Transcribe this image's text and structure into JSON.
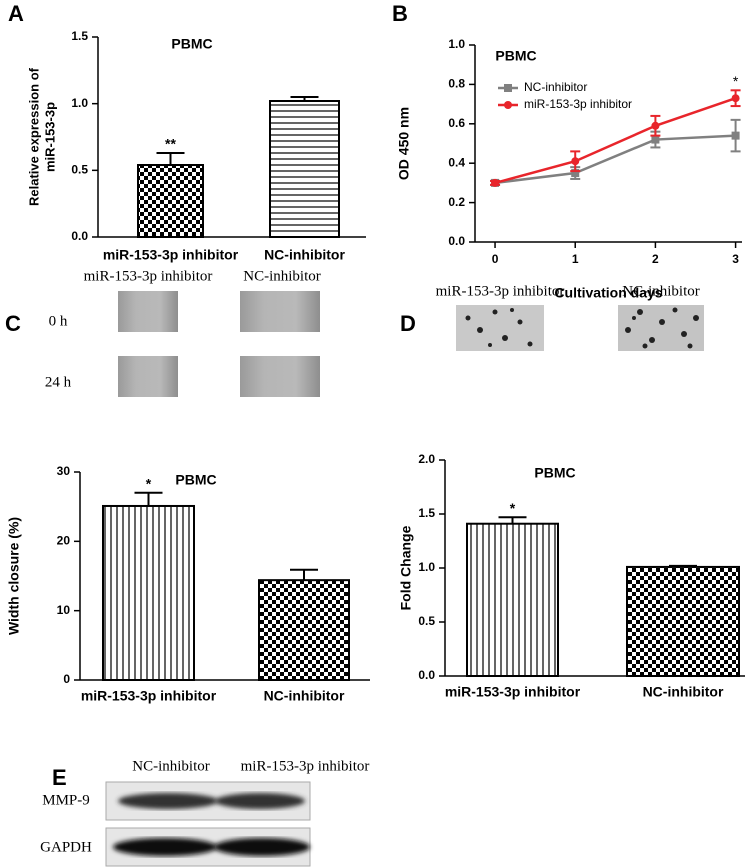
{
  "panel_labels": [
    "A",
    "B",
    "C",
    "D",
    "E"
  ],
  "chart_data": [
    {
      "type": "bar",
      "title": "PBMC",
      "ylabel": [
        "Relative expression of",
        "miR-153-3p"
      ],
      "categories": [
        "miR-153-3p inhibitor",
        "NC-inhibitor"
      ],
      "values": [
        0.54,
        1.02
      ],
      "errors": [
        0.09,
        0.03
      ],
      "patterns": [
        "checker",
        "hlines"
      ],
      "annotations": [
        {
          "text": "**",
          "category": "miR-153-3p inhibitor"
        }
      ],
      "ylim": [
        0,
        1.5
      ],
      "yticks": [
        {
          "value": 0,
          "label": "0.0"
        },
        0.5,
        {
          "value": 1,
          "label": "1.0"
        },
        1.5
      ]
    },
    {
      "type": "line",
      "title": "PBMC",
      "xlabel": "Cultivation days",
      "ylabel": "OD 450 nm",
      "x": [
        0,
        1,
        2,
        3
      ],
      "xlim": [
        -0.25,
        3.08
      ],
      "xticks": [
        0,
        1,
        2,
        3
      ],
      "ylim": [
        0,
        1
      ],
      "yticks": [
        {
          "value": 0,
          "label": "0.0"
        },
        {
          "value": 0.2,
          "label": "0.2"
        },
        {
          "value": 0.4,
          "label": "0.4"
        },
        {
          "value": 0.6,
          "label": "0.6"
        },
        {
          "value": 0.8,
          "label": "0.8"
        },
        {
          "value": 1,
          "label": "1.0"
        }
      ],
      "series": [
        {
          "name": "NC-inhibitor",
          "color": "#808080",
          "marker": "square",
          "values": [
            0.3,
            0.35,
            0.52,
            0.54
          ],
          "errors": [
            0.01,
            0.03,
            0.04,
            0.08
          ]
        },
        {
          "name": "miR-153-3p inhibitor",
          "color": "#e8252b",
          "marker": "circle",
          "values": [
            0.3,
            0.41,
            0.59,
            0.73
          ],
          "errors": [
            0.01,
            0.05,
            0.05,
            0.04
          ]
        }
      ],
      "annotations": [
        {
          "text": "*",
          "x": 3,
          "series": "miR-153-3p inhibitor"
        }
      ]
    },
    {
      "type": "bar",
      "title": "PBMC",
      "ylabel": "Width closure (%)",
      "categories": [
        "miR-153-3p inhibitor",
        "NC-inhibitor"
      ],
      "values": [
        25.1,
        14.4
      ],
      "errors": [
        1.9,
        1.5
      ],
      "patterns": [
        "vlines",
        "checker"
      ],
      "annotations": [
        {
          "text": "*",
          "category": "miR-153-3p inhibitor"
        }
      ],
      "ylim": [
        0,
        30
      ],
      "yticks": [
        0,
        10,
        20,
        30
      ]
    },
    {
      "type": "bar",
      "title": "PBMC",
      "ylabel": "Fold Change",
      "categories": [
        "miR-153-3p inhibitor",
        "NC-inhibitor"
      ],
      "values": [
        1.41,
        1.01
      ],
      "errors": [
        0.06,
        0.01
      ],
      "patterns": [
        "vlines",
        "checker"
      ],
      "annotations": [
        {
          "text": "*",
          "category": "miR-153-3p inhibitor"
        }
      ],
      "ylim": [
        0,
        2
      ],
      "yticks": [
        {
          "value": 0,
          "label": "0.0"
        },
        0.5,
        {
          "value": 1,
          "label": "1.0"
        },
        1.5,
        {
          "value": 2,
          "label": "2.0"
        }
      ]
    }
  ],
  "wound_images": {
    "columns": [
      "miR-153-3p inhibitor",
      "NC-inhibitor"
    ],
    "rows": [
      "0 h",
      "24 h"
    ]
  },
  "invasion_images": {
    "columns": [
      "miR-153-3p inhibitor",
      "NC-inhibitor"
    ]
  },
  "western_blot": {
    "columns": [
      "NC-inhibitor",
      "miR-153-3p inhibitor"
    ],
    "rows": [
      "MMP-9",
      "GAPDH"
    ]
  }
}
